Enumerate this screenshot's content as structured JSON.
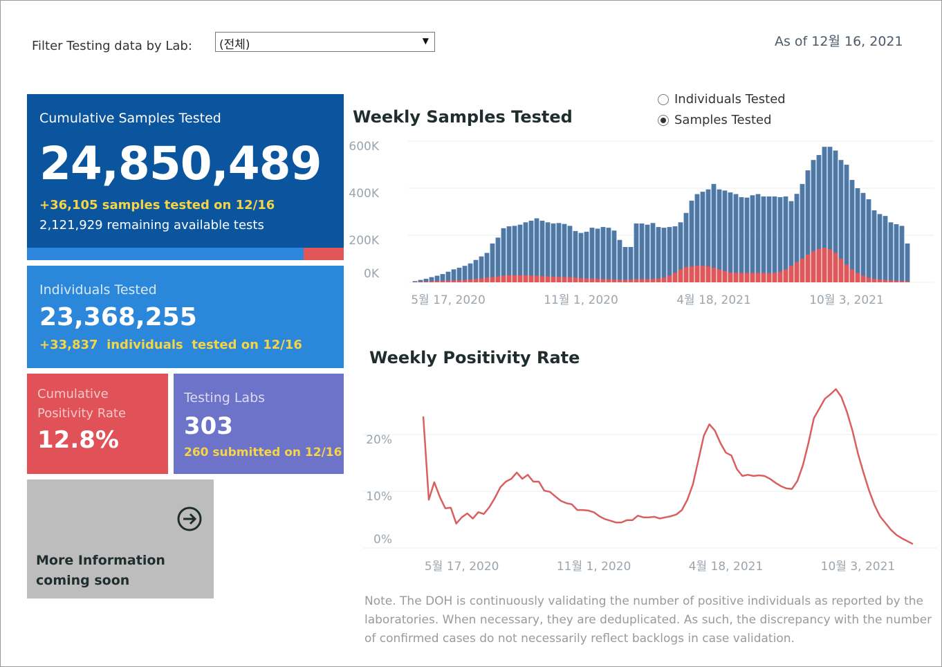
{
  "filter": {
    "label": "Filter Testing data by Lab:",
    "selected": "(전체)"
  },
  "as_of": "As of 12월 16, 2021",
  "cumulative_samples": {
    "title": "Cumulative Samples Tested",
    "value": "24,850,489",
    "delta": "+36,105 samples tested on 12/16",
    "remaining": "2,121,929 remaining available tests"
  },
  "individuals": {
    "title": "Individuals Tested",
    "value": "23,368,255",
    "delta": "+33,837  individuals  tested on 12/16"
  },
  "positivity": {
    "title": "Cumulative Positivity Rate",
    "value": "12.8%"
  },
  "labs": {
    "title": "Testing Labs",
    "value": "303",
    "delta": "260 submitted on 12/16"
  },
  "more_info": {
    "line1": "More Information",
    "line2": "coming soon"
  },
  "toggle": {
    "options": [
      "Individuals Tested",
      "Samples Tested"
    ],
    "selected": 1
  },
  "note": "Note. The DOH is continuously validating the number of positive individuals as reported by the laboratories. When necessary, they are deduplicated. As such, the discrepancy with the number of confirmed cases do not necessarily reflect backlogs in case validation.",
  "chart_data": [
    {
      "type": "bar",
      "title": "Weekly Samples Tested",
      "categories": [
        null,
        null,
        null,
        null,
        null,
        null,
        "5월 17, 2020",
        null,
        null,
        null,
        null,
        null,
        null,
        null,
        null,
        null,
        null,
        null,
        null,
        null,
        null,
        null,
        null,
        null,
        null,
        null,
        null,
        null,
        null,
        null,
        "11월 1, 2020",
        null,
        null,
        null,
        null,
        null,
        null,
        null,
        null,
        null,
        null,
        null,
        null,
        null,
        null,
        null,
        null,
        null,
        null,
        null,
        null,
        null,
        null,
        null,
        "4월 18, 2021",
        null,
        null,
        null,
        null,
        null,
        null,
        null,
        null,
        null,
        null,
        null,
        null,
        null,
        null,
        null,
        null,
        null,
        null,
        null,
        null,
        null,
        null,
        null,
        "10월 3, 2021",
        null,
        null,
        null,
        null,
        null,
        null,
        null,
        null,
        null,
        null,
        null
      ],
      "series": [
        {
          "color": "#4e79a7",
          "values": [
            5000,
            10000,
            15000,
            22000,
            28000,
            35000,
            45000,
            55000,
            62000,
            70000,
            80000,
            95000,
            110000,
            125000,
            165000,
            190000,
            230000,
            238000,
            240000,
            245000,
            255000,
            262000,
            272000,
            262000,
            255000,
            250000,
            252000,
            248000,
            240000,
            218000,
            210000,
            215000,
            232000,
            228000,
            235000,
            232000,
            220000,
            180000,
            150000,
            150000,
            250000,
            250000,
            245000,
            252000,
            235000,
            232000,
            235000,
            238000,
            255000,
            295000,
            347000,
            375000,
            385000,
            395000,
            418000,
            395000,
            390000,
            382000,
            375000,
            362000,
            360000,
            370000,
            375000,
            365000,
            365000,
            365000,
            362000,
            365000,
            345000,
            376000,
            418000,
            476000,
            520000,
            541000,
            576000,
            576000,
            560000,
            520000,
            500000,
            435000,
            400000,
            380000,
            353000,
            306000,
            290000,
            282000,
            255000,
            247000,
            240000,
            165000
          ]
        },
        {
          "color": "#e15759",
          "values": [
            1000,
            2000,
            3000,
            4000,
            5000,
            6000,
            7000,
            8000,
            9000,
            10000,
            12000,
            14000,
            16000,
            20000,
            22000,
            25000,
            28000,
            30000,
            30000,
            30000,
            30000,
            28000,
            28000,
            26000,
            25000,
            24000,
            23000,
            22000,
            22000,
            20000,
            18000,
            16000,
            16000,
            15000,
            14000,
            13000,
            12000,
            10000,
            10000,
            12000,
            14000,
            14000,
            14000,
            15000,
            16000,
            20000,
            28000,
            40000,
            55000,
            65000,
            68000,
            70000,
            70000,
            68000,
            62000,
            55000,
            48000,
            42000,
            40000,
            40000,
            40000,
            40000,
            40000,
            40000,
            38000,
            40000,
            45000,
            55000,
            70000,
            85000,
            100000,
            118000,
            132000,
            142000,
            147000,
            140000,
            125000,
            100000,
            75000,
            55000,
            40000,
            28000,
            20000,
            15000,
            12000,
            10000,
            8000,
            6000,
            5000,
            4000
          ]
        }
      ],
      "ylim": [
        0,
        600000
      ],
      "yticks": [
        {
          "value": 0,
          "label": "0K"
        },
        {
          "value": 200000,
          "label": "200K"
        },
        {
          "value": 400000,
          "label": "400K"
        },
        {
          "value": 600000,
          "label": "600K"
        }
      ],
      "grid": true
    },
    {
      "type": "line",
      "title": "Weekly Positivity Rate",
      "categories": [
        null,
        null,
        null,
        null,
        null,
        null,
        null,
        "5월 17, 2020",
        null,
        null,
        null,
        null,
        null,
        null,
        null,
        null,
        null,
        null,
        null,
        null,
        null,
        null,
        null,
        null,
        null,
        null,
        null,
        null,
        null,
        null,
        null,
        "11월 1, 2020",
        null,
        null,
        null,
        null,
        null,
        null,
        null,
        null,
        null,
        null,
        null,
        null,
        null,
        null,
        null,
        null,
        null,
        null,
        null,
        null,
        null,
        null,
        null,
        "4월 18, 2021",
        null,
        null,
        null,
        null,
        null,
        null,
        null,
        null,
        null,
        null,
        null,
        null,
        null,
        null,
        null,
        null,
        null,
        null,
        null,
        null,
        null,
        null,
        null,
        "10월 3, 2021",
        null,
        null,
        null,
        null,
        null,
        null,
        null,
        null,
        null,
        null
      ],
      "series": [
        {
          "color": "#d95f5f",
          "values": [
            23.2,
            8.5,
            11.6,
            9.0,
            7.0,
            7.1,
            4.3,
            5.4,
            6.1,
            5.2,
            6.3,
            6.0,
            7.2,
            8.8,
            10.7,
            11.7,
            12.2,
            13.3,
            12.2,
            12.9,
            11.7,
            11.7,
            10.1,
            9.9,
            9.1,
            8.3,
            7.9,
            7.7,
            6.7,
            6.7,
            6.6,
            6.3,
            5.6,
            5.1,
            4.8,
            4.5,
            4.5,
            4.9,
            4.9,
            5.7,
            5.4,
            5.4,
            5.5,
            5.2,
            5.4,
            5.6,
            5.9,
            6.7,
            8.5,
            11.2,
            15.5,
            19.8,
            21.8,
            20.7,
            18.5,
            16.8,
            16.3,
            13.9,
            12.7,
            12.9,
            12.7,
            12.8,
            12.7,
            12.2,
            11.5,
            10.9,
            10.5,
            10.4,
            11.8,
            14.6,
            18.5,
            22.9,
            24.6,
            26.3,
            27.1,
            28.0,
            26.6,
            24.0,
            20.7,
            16.7,
            13.3,
            10.2,
            7.6,
            5.6,
            4.4,
            3.2,
            2.3,
            1.7,
            1.2,
            0.7
          ]
        }
      ],
      "ylim": [
        0,
        30
      ],
      "yticks": [
        {
          "value": 0,
          "label": "0%"
        },
        {
          "value": 10,
          "label": "10%"
        },
        {
          "value": 20,
          "label": "20%"
        }
      ],
      "grid": true
    }
  ]
}
